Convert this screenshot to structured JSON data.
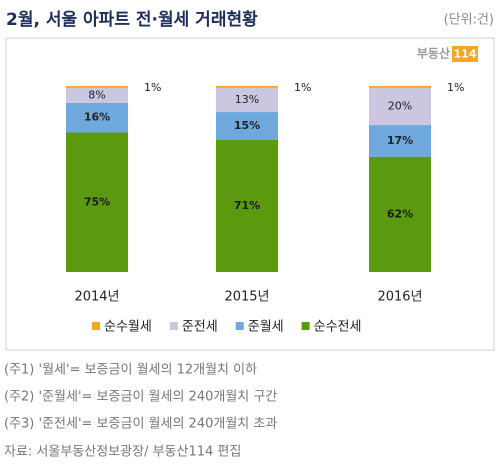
{
  "header": {
    "title": "2월, 서울 아파트 전·월세 거래현황",
    "unit": "(단위:건)"
  },
  "logo": {
    "text": "부동산",
    "badge": "114"
  },
  "chart_data": {
    "type": "bar",
    "stacked": true,
    "categories": [
      "2014년",
      "2015년",
      "2016년"
    ],
    "series": [
      {
        "name": "순수월세",
        "color": "#f5a623",
        "values": [
          1,
          1,
          1
        ],
        "value_labels": [
          "1%",
          "1%",
          "1%"
        ]
      },
      {
        "name": "준전세",
        "color": "#ccc6e0",
        "values": [
          8,
          13,
          20
        ],
        "value_labels": [
          "8%",
          "13%",
          "20%"
        ]
      },
      {
        "name": "준월세",
        "color": "#6fa8dc",
        "values": [
          16,
          15,
          17
        ],
        "value_labels": [
          "16%",
          "15%",
          "17%"
        ]
      },
      {
        "name": "순수전세",
        "color": "#5b9a0e",
        "values": [
          75,
          71,
          62
        ],
        "value_labels": [
          "75%",
          "71%",
          "62%"
        ]
      }
    ]
  },
  "notes": [
    "(주1) '월세'= 보증금이 월세의 12개월치 이하",
    "(주2) '준월세'= 보증금이 월세의 240개월치 구간",
    "(주3) '준전세'= 보증금이 월세의 240개월치 초과",
    "자료: 서울부동산정보광장/ 부동산114 편집"
  ]
}
